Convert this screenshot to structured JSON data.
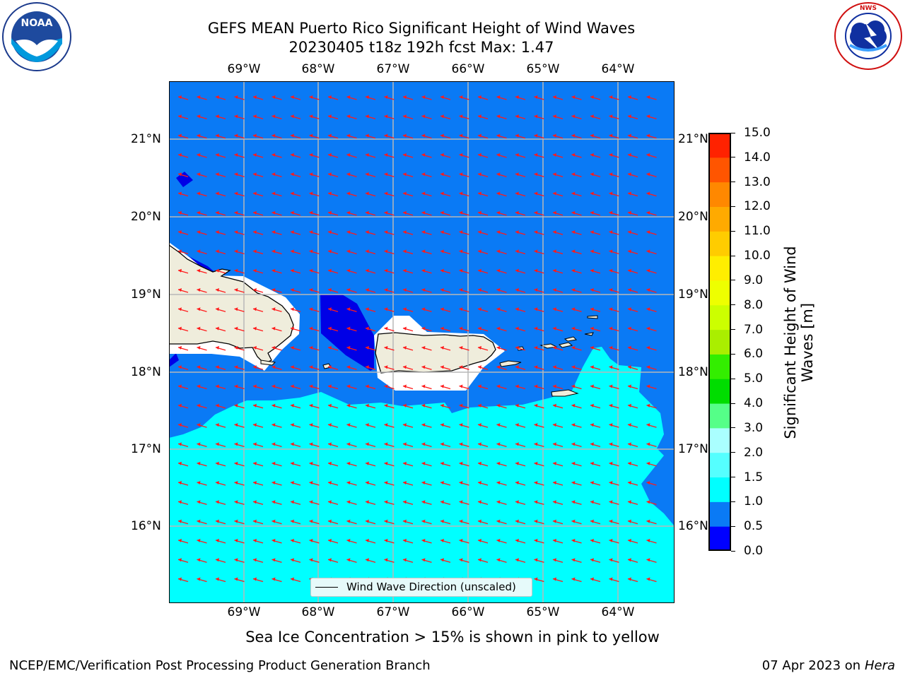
{
  "header": {
    "title_line1": "GEFS MEAN Puerto Rico Significant Height of Wind Waves",
    "title_line2": "20230405 t18z 192h fcst   Max: 1.47"
  },
  "logos": {
    "left": {
      "icon": "noaa-logo",
      "text": "NOAA",
      "ring_text": "NATIONAL OCEANIC AND ATMOSPHERIC ADMINISTRATION · U.S. DEPARTMENT OF COMMERCE"
    },
    "right": {
      "icon": "nws-logo",
      "ring_text": "NATIONAL WEATHER SERVICE"
    }
  },
  "map": {
    "lon_labels": [
      "69°W",
      "68°W",
      "67°W",
      "66°W",
      "65°W",
      "64°W"
    ],
    "lat_labels": [
      "21°N",
      "20°N",
      "19°N",
      "18°N",
      "17°N",
      "16°N"
    ],
    "legend_label": "Wind Wave Direction (unscaled)",
    "colors": {
      "ocean_05_10": "#0a7af5",
      "ocean_10_15": "#00ffff",
      "ocean_00_05": "#0000e6",
      "land": "#efeddc",
      "arrow": "#ff1a1a",
      "grid": "#b8b8b8"
    }
  },
  "colorbar": {
    "label_line1": "Significant Height of Wind",
    "label_line2": "Waves [m]",
    "ticks": [
      "0.0",
      "0.5",
      "1.0",
      "1.5",
      "2.0",
      "3.0",
      "4.0",
      "5.0",
      "6.0",
      "7.0",
      "8.0",
      "9.0",
      "10.0",
      "11.0",
      "12.0",
      "13.0",
      "14.0",
      "15.0"
    ],
    "colors": [
      "#0000ff",
      "#0a7af5",
      "#00ffff",
      "#55ffff",
      "#aaffff",
      "#55ff88",
      "#00dd00",
      "#33ee00",
      "#aaee00",
      "#ccff00",
      "#eeff00",
      "#ffee00",
      "#ffcc00",
      "#ffaa00",
      "#ff8800",
      "#ff5500",
      "#ff2200"
    ]
  },
  "footer": {
    "note": "Sea Ice Concentration > 15% is shown in pink to yellow",
    "left": "NCEP/EMC/Verification Post Processing Product Generation Branch",
    "right_date": "07 Apr 2023 on ",
    "right_host": "Hera"
  }
}
